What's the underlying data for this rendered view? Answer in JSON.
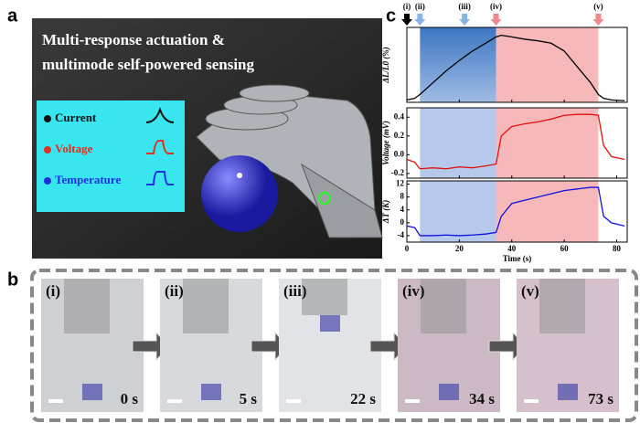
{
  "panels": {
    "a": {
      "label": "a",
      "title_lines": [
        "Multi-response actuation  &",
        "multimode self-powered sensing"
      ],
      "legend": [
        {
          "text": "Current",
          "color": "#111111"
        },
        {
          "text": "Voltage",
          "color": "#e03020"
        },
        {
          "text": "Temperature",
          "color": "#2030e0"
        }
      ]
    },
    "b": {
      "label": "b",
      "frames": [
        {
          "label": "(i)",
          "time": "0 s",
          "tint": "#cfd0d4"
        },
        {
          "label": "(ii)",
          "time": "5 s",
          "tint": "#d8d9dd"
        },
        {
          "label": "(iii)",
          "time": "22 s",
          "tint": "#e2e3e6"
        },
        {
          "label": "(iv)",
          "time": "34 s",
          "tint": "#cdb9c6"
        },
        {
          "label": "(v)",
          "time": "73 s",
          "tint": "#d6c0cd"
        }
      ]
    },
    "c": {
      "label": "c",
      "markers": [
        {
          "label": "(i)",
          "x": 0,
          "color": "#000000"
        },
        {
          "label": "(ii)",
          "x": 5,
          "color": "#8ab4e8"
        },
        {
          "label": "(iii)",
          "x": 22,
          "color": "#8ab4e8"
        },
        {
          "label": "(iv)",
          "x": 34,
          "color": "#f08a8a"
        },
        {
          "label": "(v)",
          "x": 73,
          "color": "#f08a8a"
        }
      ]
    }
  },
  "chart_data": [
    {
      "type": "line",
      "y_label": "ΔL/L0 (%)",
      "x": [
        0,
        3,
        5,
        10,
        15,
        20,
        25,
        30,
        34,
        36,
        40,
        45,
        50,
        55,
        60,
        65,
        70,
        73,
        75,
        78,
        83
      ],
      "xlim": [
        0,
        84
      ],
      "xticks": [
        0,
        20,
        40,
        60,
        80
      ],
      "ylim": [
        0,
        9.5
      ],
      "color": "#000000",
      "values": [
        0.3,
        0.5,
        1,
        2.5,
        4,
        5.3,
        6.5,
        7.5,
        8.3,
        8.5,
        8.3,
        8,
        7.8,
        7.5,
        6.5,
        4.5,
        2.5,
        1,
        0.5,
        0.3,
        0.2
      ]
    },
    {
      "type": "line",
      "y_label": "Voltage (mV)",
      "x": [
        0,
        3,
        5,
        10,
        15,
        20,
        25,
        30,
        34,
        36,
        40,
        45,
        50,
        55,
        60,
        65,
        70,
        73,
        75,
        78,
        83
      ],
      "xlim": [
        0,
        84
      ],
      "xticks": [
        0,
        20,
        40,
        60,
        80
      ],
      "ylim": [
        -0.25,
        0.5
      ],
      "yticks": [
        {
          "value": -0.2,
          "label": "-0.2"
        },
        {
          "value": 0,
          "label": "0.0"
        },
        {
          "value": 0.2,
          "label": "0.2"
        },
        {
          "value": 0.4,
          "label": "0.4"
        }
      ],
      "color": "#e01010",
      "values": [
        -0.05,
        -0.08,
        -0.15,
        -0.14,
        -0.15,
        -0.13,
        -0.14,
        -0.12,
        -0.1,
        0.2,
        0.3,
        0.33,
        0.35,
        0.38,
        0.42,
        0.43,
        0.43,
        0.42,
        0.1,
        -0.02,
        -0.05
      ]
    },
    {
      "type": "line",
      "y_label": "ΔT (K)",
      "x_label": "Time (s)",
      "x": [
        0,
        3,
        5,
        10,
        15,
        20,
        25,
        30,
        34,
        36,
        40,
        45,
        50,
        55,
        60,
        65,
        70,
        73,
        75,
        78,
        83
      ],
      "xlim": [
        0,
        84
      ],
      "xticks": [
        0,
        20,
        40,
        60,
        80
      ],
      "ylim": [
        -6,
        13
      ],
      "yticks": [
        -4,
        0,
        4,
        8,
        12
      ],
      "color": "#1010e0",
      "values": [
        -1,
        -1.5,
        -4,
        -4,
        -3.8,
        -4,
        -3.8,
        -3.5,
        -3,
        2,
        6,
        7,
        8,
        9,
        10,
        10.5,
        11,
        11,
        2,
        0,
        -1
      ]
    }
  ]
}
